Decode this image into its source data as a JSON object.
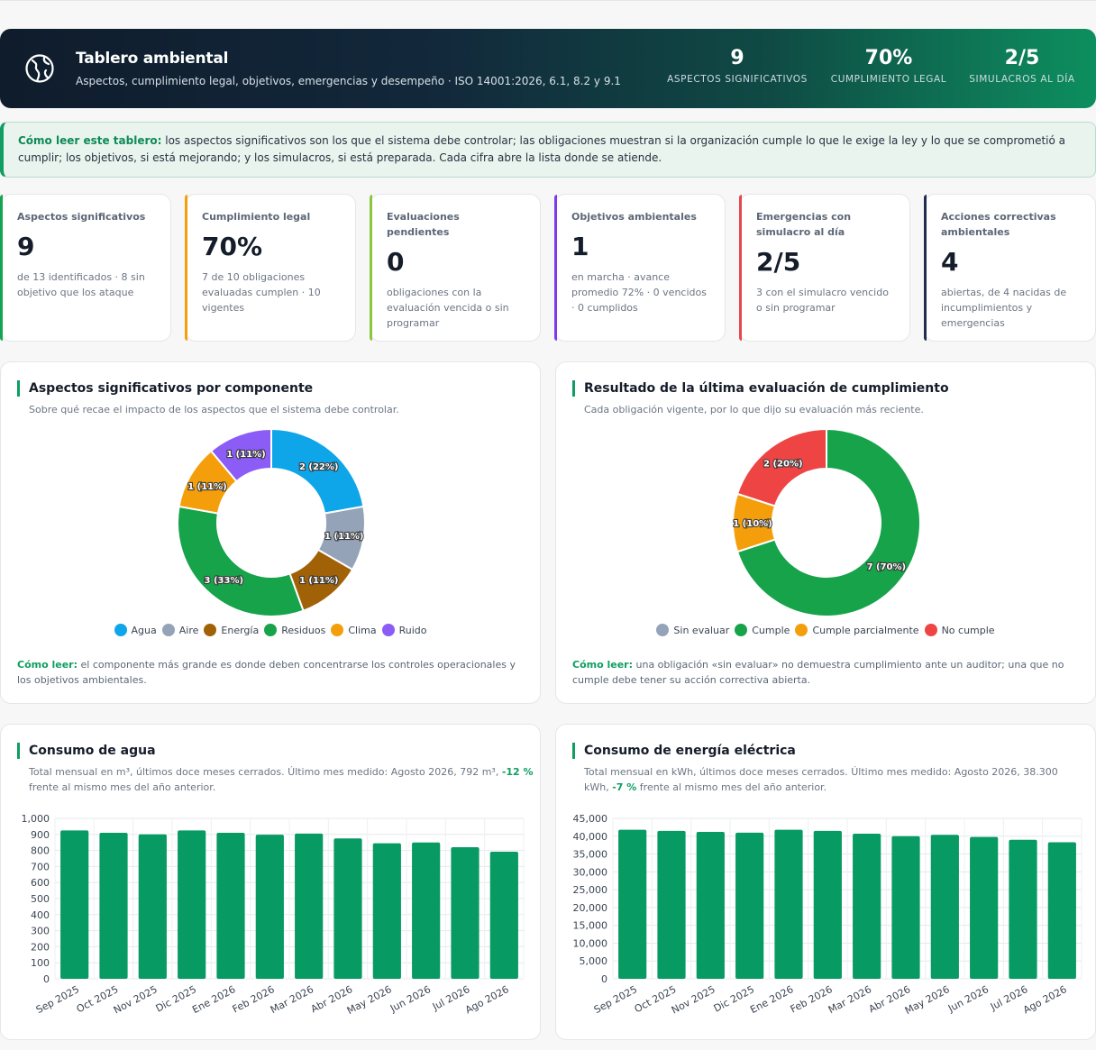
{
  "header": {
    "title": "Tablero ambiental",
    "subtitle": "Aspectos, cumplimiento legal, objetivos, emergencias y desempeño · ISO 14001:2026, 6.1, 8.2 y 9.1",
    "kpis": [
      {
        "value": "9",
        "label": "ASPECTOS SIGNIFICATIVOS"
      },
      {
        "value": "70%",
        "label": "CUMPLIMIENTO LEGAL"
      },
      {
        "value": "2/5",
        "label": "SIMULACROS AL DÍA"
      }
    ]
  },
  "note": {
    "lead": "Cómo leer este tablero:",
    "text": " los aspectos significativos son los que el sistema debe controlar; las obligaciones muestran si la organización cumple lo que le exige la ley y lo que se comprometió a cumplir; los objetivos, si está mejorando; y los simulacros, si está preparada. Cada cifra abre la lista donde se atiende."
  },
  "cards": [
    {
      "title": "Aspectos significativos",
      "value": "9",
      "desc": "de 13 identificados · 8 sin objetivo que los ataque"
    },
    {
      "title": "Cumplimiento legal",
      "value": "70%",
      "desc": "7 de 10 obligaciones evaluadas cumplen · 10 vigentes"
    },
    {
      "title": "Evaluaciones pendientes",
      "value": "0",
      "desc": "obligaciones con la evaluación vencida o sin programar"
    },
    {
      "title": "Objetivos ambientales",
      "value": "1",
      "desc": "en marcha · avance promedio 72% · 0 vencidos · 0 cumplidos"
    },
    {
      "title": "Emergencias con simulacro al día",
      "value": "2/5",
      "desc": "3 con el simulacro vencido o sin programar"
    },
    {
      "title": "Acciones correctivas ambientales",
      "value": "4",
      "desc": "abiertas, de 4 nacidas de incumplimientos y emergencias"
    }
  ],
  "panels": {
    "aspects": {
      "title": "Aspectos significativos por componente",
      "subtitle": "Sobre qué recae el impacto de los aspectos que el sistema debe controlar.",
      "howto_lead": "Cómo leer:",
      "howto": " el componente más grande es donde deben concentrarse los controles operacionales y los objetivos ambientales."
    },
    "compliance": {
      "title": "Resultado de la última evaluación de cumplimiento",
      "subtitle": "Cada obligación vigente, por lo que dijo su evaluación más reciente.",
      "howto_lead": "Cómo leer:",
      "howto": " una obligación «sin evaluar» no demuestra cumplimiento ante un auditor; una que no cumple debe tener su acción correctiva abierta."
    },
    "water": {
      "title": "Consumo de agua",
      "sub_a": "Total mensual en m³, últimos doce meses cerrados. Último mes medido: Agosto 2026, 792 m³, ",
      "sub_delta": "-12 %",
      "sub_b": " frente al mismo mes del año anterior."
    },
    "energy": {
      "title": "Consumo de energía eléctrica",
      "sub_a": "Total mensual en kWh, últimos doce meses cerrados. Último mes medido: Agosto 2026, 38.300 kWh, ",
      "sub_delta": "-7 %",
      "sub_b": " frente al mismo mes del año anterior."
    }
  },
  "chart_data": [
    {
      "type": "pie",
      "donut": true,
      "labels": [
        "Agua",
        "Aire",
        "Energía",
        "Residuos",
        "Clima",
        "Ruido"
      ],
      "values": [
        2,
        1,
        1,
        3,
        1,
        1
      ],
      "slice_labels": [
        "2 (22%)",
        "1 (11%)",
        "1 (11%)",
        "3 (33%)",
        "1 (11%)",
        "1 (11%)"
      ],
      "colors": [
        "#0ea5e9",
        "#94a3b8",
        "#a16207",
        "#16a34a",
        "#f59e0b",
        "#8b5cf6"
      ],
      "legend": "bottom"
    },
    {
      "type": "pie",
      "donut": true,
      "labels": [
        "Sin evaluar",
        "Cumple",
        "Cumple parcialmente",
        "No cumple"
      ],
      "values": [
        0,
        7,
        1,
        2
      ],
      "slice_labels": [
        "",
        "7 (70%)",
        "1 (10%)",
        "2 (20%)"
      ],
      "colors": [
        "#94a3b8",
        "#16a34a",
        "#f59e0b",
        "#ef4444"
      ],
      "legend": "bottom"
    },
    {
      "type": "bar",
      "categories": [
        "Sep 2025",
        "Oct 2025",
        "Nov 2025",
        "Dic 2025",
        "Ene 2026",
        "Feb 2026",
        "Mar 2026",
        "Abr 2026",
        "May 2026",
        "Jun 2026",
        "Jul 2026",
        "Ago 2026"
      ],
      "values": [
        925,
        910,
        900,
        925,
        910,
        898,
        905,
        875,
        845,
        850,
        820,
        792
      ],
      "ylim": [
        0,
        1000
      ],
      "yticks": [
        "0",
        "100",
        "200",
        "300",
        "400",
        "500",
        "600",
        "700",
        "800",
        "900",
        "1,000"
      ],
      "color": "#079a63",
      "grid": true
    },
    {
      "type": "bar",
      "categories": [
        "Sep 2025",
        "Oct 2025",
        "Nov 2025",
        "Dic 2025",
        "Ene 2026",
        "Feb 2026",
        "Mar 2026",
        "Abr 2026",
        "May 2026",
        "Jun 2026",
        "Jul 2026",
        "Ago 2026"
      ],
      "values": [
        41800,
        41500,
        41200,
        41000,
        41800,
        41500,
        40700,
        40000,
        40400,
        39800,
        39000,
        38300
      ],
      "ylim": [
        0,
        45000
      ],
      "yticks": [
        "0",
        "5,000",
        "10,000",
        "15,000",
        "20,000",
        "25,000",
        "30,000",
        "35,000",
        "40,000",
        "45,000"
      ],
      "color": "#079a63",
      "grid": true
    }
  ]
}
